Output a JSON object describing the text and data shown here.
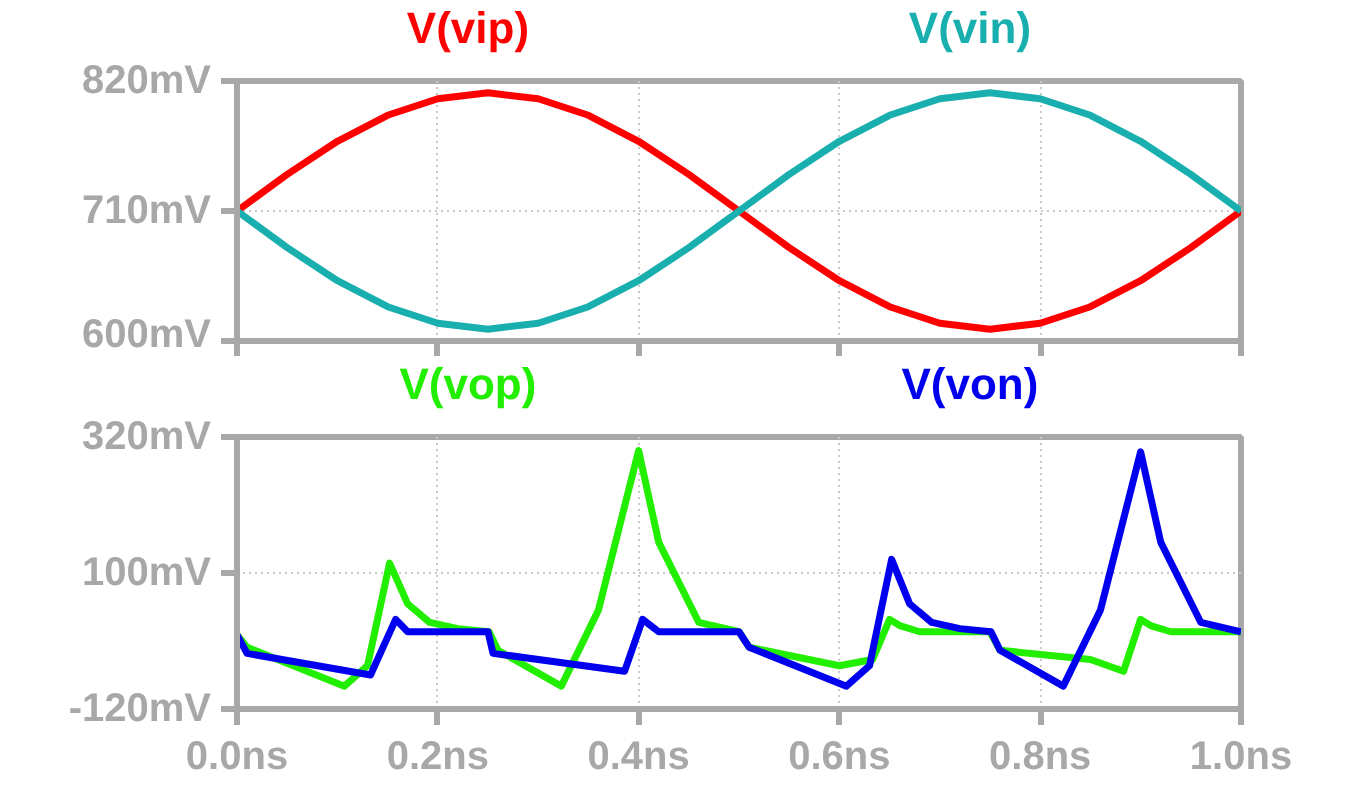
{
  "chart_data": [
    {
      "type": "line",
      "x": [
        0,
        0.05,
        0.1,
        0.15,
        0.2,
        0.25,
        0.3,
        0.35,
        0.4,
        0.45,
        0.5,
        0.55,
        0.6,
        0.65,
        0.7,
        0.75,
        0.8,
        0.85,
        0.9,
        0.95,
        1.0
      ],
      "series": [
        {
          "name": "V(vip)",
          "color": "#ff0000",
          "values": [
            710,
            741,
            769,
            791,
            805,
            810,
            805,
            791,
            769,
            741,
            710,
            679,
            651,
            629,
            615,
            610,
            615,
            629,
            651,
            679,
            710
          ]
        },
        {
          "name": "V(vin)",
          "color": "#1aafaf",
          "values": [
            710,
            679,
            651,
            629,
            615,
            610,
            615,
            629,
            651,
            679,
            710,
            741,
            769,
            791,
            805,
            810,
            805,
            791,
            769,
            741,
            710
          ]
        }
      ],
      "xlim": [
        0,
        1.0
      ],
      "xticks": [
        {
          "value": 0,
          "label": null
        },
        {
          "value": 0.2,
          "label": null
        },
        {
          "value": 0.4,
          "label": null
        },
        {
          "value": 0.6,
          "label": null
        },
        {
          "value": 0.8,
          "label": null
        },
        {
          "value": 1.0,
          "label": null
        }
      ],
      "ylim": [
        600,
        820
      ],
      "yticks": [
        {
          "value": 600,
          "label": "600mV"
        },
        {
          "value": 710,
          "label": "710mV"
        },
        {
          "value": 820,
          "label": "820mV"
        }
      ],
      "tick_labels": "y",
      "grid": true
    },
    {
      "type": "line",
      "series": [
        {
          "name": "V(vop)",
          "color": "#22ee00",
          "x": [
            0,
            0.01,
            0.107,
            0.13,
            0.152,
            0.17,
            0.192,
            0.22,
            0.251,
            0.26,
            0.323,
            0.36,
            0.4,
            0.42,
            0.46,
            0.5,
            0.51,
            0.6,
            0.633,
            0.65,
            0.66,
            0.68,
            0.75,
            0.76,
            0.85,
            0.883,
            0.9,
            0.91,
            0.93,
            1.0
          ],
          "values": [
            0,
            -20,
            -83,
            -50,
            116,
            50,
            20,
            10,
            5,
            -25,
            -83,
            40,
            298,
            150,
            20,
            5,
            -20,
            -50,
            -40,
            25,
            15,
            5,
            5,
            -25,
            -40,
            -59,
            25,
            15,
            5,
            5
          ]
        },
        {
          "name": "V(von)",
          "color": "#0000ee",
          "x": [
            0,
            0.01,
            0.133,
            0.158,
            0.17,
            0.25,
            0.255,
            0.386,
            0.404,
            0.42,
            0.5,
            0.51,
            0.607,
            0.63,
            0.652,
            0.67,
            0.692,
            0.72,
            0.751,
            0.76,
            0.823,
            0.86,
            0.9,
            0.92,
            0.96,
            1.0
          ],
          "values": [
            0,
            -30,
            -65,
            25,
            5,
            5,
            -30,
            -59,
            25,
            5,
            5,
            -20,
            -83,
            -50,
            122,
            50,
            20,
            10,
            5,
            -25,
            -83,
            40,
            296,
            150,
            20,
            5
          ]
        }
      ],
      "xlim": [
        0,
        1.0
      ],
      "xticks": [
        {
          "value": 0,
          "label": "0.0ns"
        },
        {
          "value": 0.2,
          "label": "0.2ns"
        },
        {
          "value": 0.4,
          "label": "0.4ns"
        },
        {
          "value": 0.6,
          "label": "0.6ns"
        },
        {
          "value": 0.8,
          "label": "0.8ns"
        },
        {
          "value": 1.0,
          "label": "1.0ns"
        }
      ],
      "ylim": [
        -120,
        320
      ],
      "yticks": [
        {
          "value": -120,
          "label": "-120mV"
        },
        {
          "value": 100,
          "label": "100mV"
        },
        {
          "value": 320,
          "label": "320mV"
        }
      ],
      "grid": true
    }
  ]
}
